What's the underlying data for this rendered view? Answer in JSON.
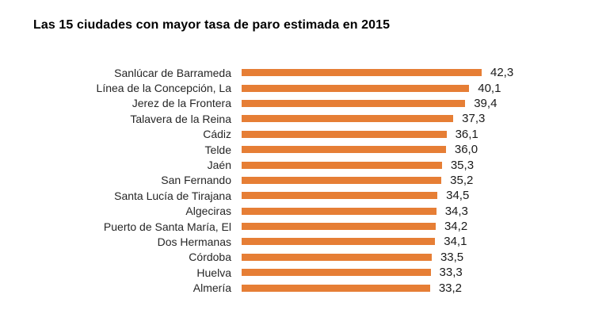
{
  "title": "Las 15 ciudades con mayor tasa de paro estimada en 2015",
  "colors": {
    "background": "#FFFFFF",
    "bar": "#E67E35",
    "title_text": "#000000",
    "category_text": "#262626",
    "value_text": "#1A1A1A"
  },
  "chart_data": {
    "type": "bar",
    "orientation": "horizontal",
    "title": "Las 15 ciudades con mayor tasa de paro estimada en 2015",
    "categories": [
      "Sanlúcar de Barrameda",
      "Línea de la Concepción, La",
      "Jerez de la Frontera",
      "Talavera de la Reina",
      "Cádiz",
      "Telde",
      "Jaén",
      "San Fernando",
      "Santa Lucía de Tirajana",
      "Algeciras",
      "Puerto de Santa María, El",
      "Dos Hermanas",
      "Córdoba",
      "Huelva",
      "Almería"
    ],
    "values": [
      42.3,
      40.1,
      39.4,
      37.3,
      36.1,
      36.0,
      35.3,
      35.2,
      34.5,
      34.3,
      34.2,
      34.1,
      33.5,
      33.3,
      33.2
    ],
    "value_labels": [
      "42,3",
      "40,1",
      "39,4",
      "37,3",
      "36,1",
      "36,0",
      "35,3",
      "35,2",
      "34,5",
      "34,3",
      "34,2",
      "34,1",
      "33,5",
      "33,3",
      "33,2"
    ],
    "xlabel": "",
    "ylabel": "",
    "xlim": [
      0,
      45
    ],
    "grid": false,
    "legend": false,
    "axis_lines": false,
    "data_labels": "outside-end",
    "decimal_separator": ","
  }
}
